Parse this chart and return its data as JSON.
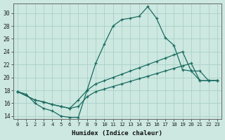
{
  "xlabel": "Humidex (Indice chaleur)",
  "bg_color": "#cce8e0",
  "line_color": "#1a6b60",
  "grid_color": "#aacfc8",
  "xlim": [
    -0.5,
    23.5
  ],
  "ylim": [
    13.5,
    31.5
  ],
  "xticks": [
    0,
    1,
    2,
    3,
    4,
    5,
    6,
    7,
    8,
    9,
    10,
    11,
    12,
    13,
    14,
    15,
    16,
    17,
    18,
    19,
    20,
    21,
    22,
    23
  ],
  "yticks": [
    14,
    16,
    18,
    20,
    22,
    24,
    26,
    28,
    30
  ],
  "curve1_x": [
    0,
    1,
    2,
    3,
    4,
    5,
    6,
    7,
    8,
    9,
    10,
    11,
    12,
    13,
    14,
    15,
    16,
    17,
    18,
    19,
    20,
    21,
    22,
    23
  ],
  "curve1_y": [
    17.8,
    17.4,
    16.0,
    15.2,
    14.8,
    14.0,
    13.8,
    13.8,
    18.0,
    22.2,
    25.2,
    28.0,
    29.0,
    29.2,
    29.5,
    31.0,
    29.2,
    26.2,
    25.0,
    21.2,
    21.0,
    19.5,
    19.5,
    19.5
  ],
  "curve2_x": [
    0,
    2,
    3,
    4,
    5,
    6,
    7,
    8,
    9,
    10,
    11,
    12,
    13,
    14,
    15,
    16,
    17,
    18,
    19,
    20,
    21,
    22,
    23
  ],
  "curve2_y": [
    17.8,
    16.5,
    16.2,
    15.8,
    15.5,
    15.2,
    16.5,
    18.0,
    19.0,
    19.5,
    20.0,
    20.5,
    21.0,
    21.5,
    22.0,
    22.5,
    23.0,
    23.5,
    24.0,
    21.0,
    21.0,
    19.5,
    19.5
  ],
  "curve3_x": [
    0,
    2,
    3,
    4,
    5,
    6,
    7,
    8,
    9,
    10,
    11,
    12,
    13,
    14,
    15,
    16,
    17,
    18,
    19,
    20,
    21,
    22,
    23
  ],
  "curve3_y": [
    17.8,
    16.5,
    16.2,
    15.8,
    15.5,
    15.2,
    15.5,
    17.0,
    17.8,
    18.2,
    18.6,
    19.0,
    19.4,
    19.8,
    20.2,
    20.6,
    21.0,
    21.4,
    21.8,
    22.2,
    19.5,
    19.5,
    19.5
  ]
}
